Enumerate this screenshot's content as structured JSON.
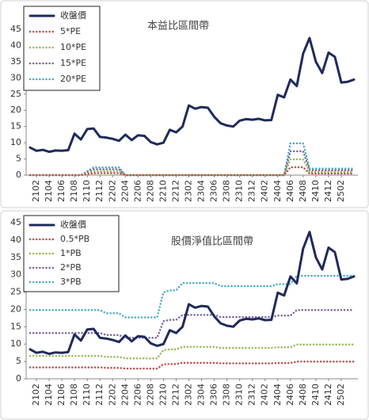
{
  "chart_data": [
    {
      "type": "line",
      "title": "本益比區間帶",
      "categories": [
        null,
        "2102",
        null,
        "2104",
        null,
        "2106",
        null,
        "2108",
        null,
        "2110",
        null,
        "2112",
        null,
        "2202",
        null,
        "2204",
        null,
        "2206",
        null,
        "2208",
        null,
        "2210",
        null,
        "2212",
        null,
        "2302",
        null,
        "2304",
        null,
        "2306",
        null,
        "2308",
        null,
        "2310",
        null,
        "2312",
        null,
        "2402",
        null,
        "2404",
        null,
        "2406",
        null,
        "2408",
        null,
        "2410",
        null,
        "2412",
        null,
        "2502",
        null,
        null
      ],
      "ylim": [
        0,
        45
      ],
      "yticks": [
        0,
        5,
        10,
        15,
        20,
        25,
        30,
        35,
        40,
        45
      ],
      "grid": false,
      "legend": "top-left",
      "series": [
        {
          "name": "收盤價",
          "color": "#1f2a5c",
          "style": "solid",
          "values": [
            8.5,
            7.5,
            7.8,
            7.2,
            7.6,
            7.5,
            7.7,
            12.8,
            11,
            14.2,
            14.4,
            11.8,
            11.6,
            11.2,
            10.6,
            12.5,
            10.8,
            12.3,
            12.1,
            10.2,
            9.5,
            10,
            14,
            13.2,
            15,
            21.5,
            20.5,
            21,
            20.8,
            18,
            16,
            15.3,
            15,
            16.8,
            17.3,
            17.1,
            17.4,
            16.9,
            17,
            24.8,
            24,
            29.5,
            27.5,
            37.5,
            42.3,
            35,
            31.5,
            37.8,
            36.5,
            28.6,
            28.8,
            29.5
          ]
        },
        {
          "name": "5*PE",
          "color": "#c0504d",
          "style": "dotted",
          "values": [
            0,
            0,
            0,
            0,
            0,
            0,
            0,
            0,
            0,
            0.3,
            0.6,
            0.6,
            0.6,
            0.6,
            0.6,
            0,
            0,
            0,
            0,
            0,
            0,
            0,
            0,
            0,
            0,
            0,
            0,
            0,
            0,
            0,
            0,
            0,
            0,
            0,
            0,
            0,
            0,
            0,
            0,
            0,
            0,
            2.45,
            2.45,
            2.45,
            0.5,
            0.5,
            0.5,
            0.5,
            0.5,
            0.5,
            0.5,
            0.5
          ]
        },
        {
          "name": "10*PE",
          "color": "#9bbb59",
          "style": "dotted",
          "values": [
            0,
            0,
            0,
            0,
            0,
            0,
            0,
            0,
            0,
            0.6,
            1.2,
            1.2,
            1.2,
            1.2,
            1.2,
            0,
            0,
            0,
            0,
            0,
            0,
            0,
            0,
            0,
            0,
            0,
            0,
            0,
            0,
            0,
            0,
            0,
            0,
            0,
            0,
            0,
            0,
            0,
            0,
            0,
            0,
            4.9,
            4.9,
            4.9,
            1,
            1,
            1,
            1,
            1,
            1,
            1,
            1
          ]
        },
        {
          "name": "15*PE",
          "color": "#8064a2",
          "style": "dotted",
          "values": [
            0,
            0,
            0,
            0,
            0,
            0,
            0,
            0,
            0,
            0.9,
            1.8,
            1.8,
            1.8,
            1.8,
            1.8,
            0,
            0,
            0,
            0,
            0,
            0,
            0,
            0,
            0,
            0,
            0,
            0,
            0,
            0,
            0,
            0,
            0,
            0,
            0,
            0,
            0,
            0,
            0,
            0,
            0,
            0,
            7.35,
            7.35,
            7.35,
            1.5,
            1.5,
            1.5,
            1.5,
            1.5,
            1.5,
            1.5,
            1.5
          ]
        },
        {
          "name": "20*PE",
          "color": "#4bacc6",
          "style": "dotted",
          "values": [
            0,
            0,
            0,
            0,
            0,
            0,
            0,
            0,
            0,
            1.2,
            2.4,
            2.4,
            2.4,
            2.4,
            2.4,
            0,
            0,
            0,
            0,
            0,
            0,
            0,
            0,
            0,
            0,
            0,
            0,
            0,
            0,
            0,
            0,
            0,
            0,
            0,
            0,
            0,
            0,
            0,
            0,
            0,
            0,
            9.8,
            9.8,
            9.8,
            2,
            2,
            2,
            2,
            2,
            2,
            2,
            2
          ]
        }
      ]
    },
    {
      "type": "line",
      "title": "股價淨值比區間帶",
      "categories": [
        null,
        "2102",
        null,
        "2104",
        null,
        "2106",
        null,
        "2108",
        null,
        "2110",
        null,
        "2112",
        null,
        "2202",
        null,
        "2204",
        null,
        "2206",
        null,
        "2208",
        null,
        "2210",
        null,
        "2212",
        null,
        "2302",
        null,
        "2304",
        null,
        "2306",
        null,
        "2308",
        null,
        "2310",
        null,
        "2312",
        null,
        "2402",
        null,
        "2404",
        null,
        "2406",
        null,
        "2408",
        null,
        "2410",
        null,
        "2412",
        null,
        "2502",
        null,
        null
      ],
      "ylim": [
        0,
        45
      ],
      "yticks": [
        0,
        5,
        10,
        15,
        20,
        25,
        30,
        35,
        40,
        45
      ],
      "grid": false,
      "legend": "top-left",
      "series": [
        {
          "name": "收盤價",
          "color": "#1f2a5c",
          "style": "solid",
          "values": [
            8.5,
            7.5,
            7.8,
            7.2,
            7.6,
            7.5,
            7.7,
            12.8,
            11,
            14.2,
            14.4,
            11.8,
            11.6,
            11.2,
            10.6,
            12.5,
            10.8,
            12.3,
            12.1,
            10.2,
            9.5,
            10,
            14,
            13.2,
            15,
            21.5,
            20.5,
            21,
            20.8,
            18,
            16,
            15.3,
            15,
            16.8,
            17.3,
            17.1,
            17.4,
            16.9,
            17,
            24.8,
            24,
            29.5,
            27.5,
            37.5,
            42.3,
            35,
            31.5,
            37.8,
            36.5,
            28.6,
            28.8,
            29.5
          ]
        },
        {
          "name": "0.5*PB",
          "color": "#c0504d",
          "style": "dotted",
          "values": [
            3.3,
            3.3,
            3.3,
            3.3,
            3.3,
            3.3,
            3.3,
            3.3,
            3.3,
            3.3,
            3.3,
            3.3,
            3.15,
            3.15,
            3.15,
            2.95,
            2.95,
            2.95,
            2.95,
            2.95,
            2.95,
            4.15,
            4.25,
            4.25,
            4.6,
            4.6,
            4.6,
            4.6,
            4.6,
            4.6,
            4.45,
            4.45,
            4.45,
            4.45,
            4.45,
            4.45,
            4.45,
            4.45,
            4.45,
            4.55,
            4.55,
            4.55,
            4.95,
            4.95,
            4.95,
            4.95,
            4.95,
            4.95,
            4.95,
            4.95,
            4.95,
            4.95
          ]
        },
        {
          "name": "1*PB",
          "color": "#9bbb59",
          "style": "dotted",
          "values": [
            6.6,
            6.6,
            6.6,
            6.6,
            6.6,
            6.6,
            6.6,
            6.6,
            6.6,
            6.6,
            6.6,
            6.6,
            6.3,
            6.3,
            6.3,
            5.9,
            5.9,
            5.9,
            5.9,
            5.9,
            5.9,
            8.3,
            8.5,
            8.5,
            9.2,
            9.2,
            9.2,
            9.2,
            9.2,
            9.2,
            8.9,
            8.9,
            8.9,
            8.9,
            8.9,
            8.9,
            8.9,
            8.9,
            8.9,
            9.1,
            9.1,
            9.1,
            9.9,
            9.9,
            9.9,
            9.9,
            9.9,
            9.9,
            9.9,
            9.9,
            9.9,
            9.9
          ]
        },
        {
          "name": "2*PB",
          "color": "#8064a2",
          "style": "dotted",
          "values": [
            13.2,
            13.2,
            13.2,
            13.2,
            13.2,
            13.2,
            13.2,
            13.2,
            13.2,
            13.2,
            13.2,
            13.2,
            12.6,
            12.6,
            12.6,
            11.8,
            11.8,
            11.8,
            11.8,
            11.8,
            11.8,
            16.6,
            17,
            17,
            18.4,
            18.4,
            18.4,
            18.4,
            18.4,
            18.4,
            17.8,
            17.8,
            17.8,
            17.8,
            17.8,
            17.8,
            17.8,
            17.8,
            17.8,
            18.2,
            18.2,
            18.2,
            19.8,
            19.8,
            19.8,
            19.8,
            19.8,
            19.8,
            19.8,
            19.8,
            19.8,
            19.8
          ]
        },
        {
          "name": "3*PB",
          "color": "#4bacc6",
          "style": "dotted",
          "values": [
            19.8,
            19.8,
            19.8,
            19.8,
            19.8,
            19.8,
            19.8,
            19.8,
            19.8,
            19.8,
            19.8,
            19.8,
            18.9,
            18.9,
            18.9,
            17.7,
            17.7,
            17.7,
            17.7,
            17.7,
            17.7,
            24.9,
            25.5,
            25.5,
            27.6,
            27.6,
            27.6,
            27.6,
            27.6,
            27.6,
            26.7,
            26.7,
            26.7,
            26.7,
            26.7,
            26.7,
            26.7,
            26.7,
            26.7,
            27.3,
            27.3,
            27.3,
            29.7,
            29.7,
            29.7,
            29.7,
            29.7,
            29.7,
            29.7,
            29.7,
            29.7,
            29.7
          ]
        }
      ]
    }
  ]
}
